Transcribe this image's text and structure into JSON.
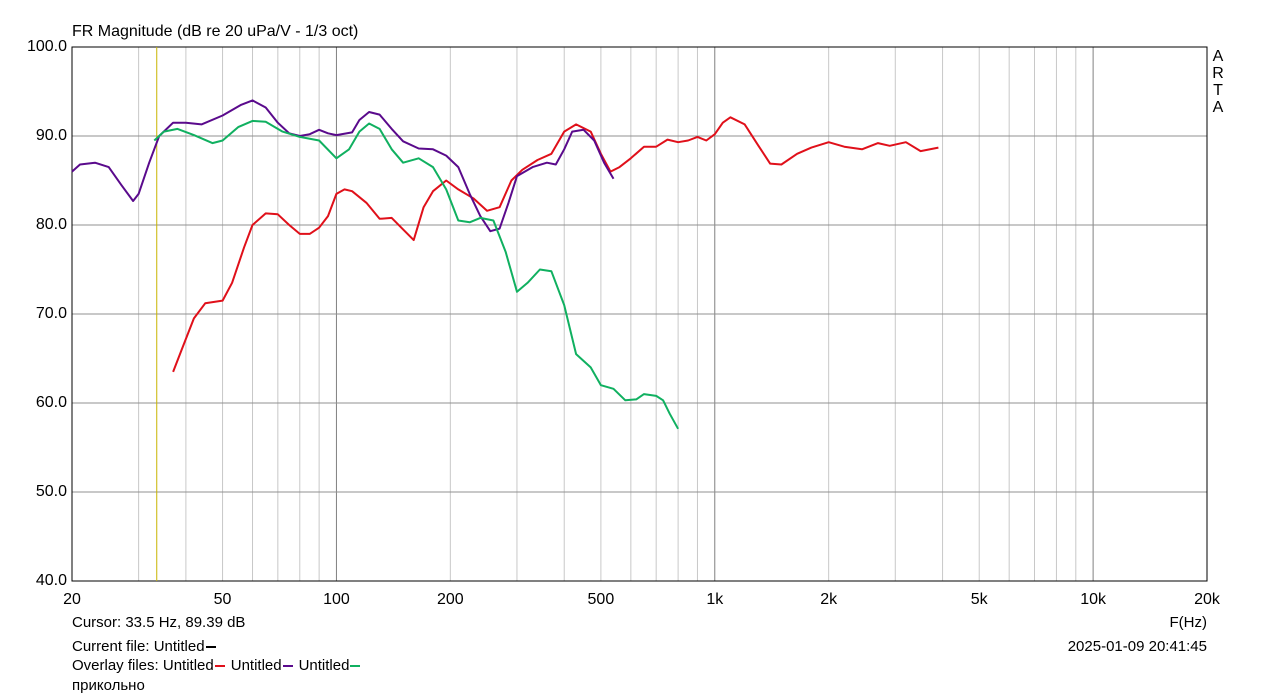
{
  "chart_data": {
    "type": "line",
    "title": "FR Magnitude (dB re 20 uPa/V - 1/3 oct)",
    "x_label": "F(Hz)",
    "side_label": [
      "A",
      "R",
      "T",
      "A"
    ],
    "log_x": true,
    "grid": true,
    "xlim": [
      20,
      20000
    ],
    "ylim": [
      40,
      100
    ],
    "xticks": [
      20,
      50,
      100,
      200,
      500,
      {
        "value": 1000,
        "label": "1k"
      },
      {
        "value": 2000,
        "label": "2k"
      },
      {
        "value": 5000,
        "label": "5k"
      },
      {
        "value": 10000,
        "label": "10k"
      },
      {
        "value": 20000,
        "label": "20k"
      }
    ],
    "xgrid_minor": [
      30,
      40,
      60,
      70,
      80,
      90,
      300,
      400,
      600,
      700,
      800,
      900,
      3000,
      4000,
      6000,
      7000,
      8000,
      9000
    ],
    "yticks": [
      {
        "value": 40,
        "label": "40.0"
      },
      {
        "value": 50,
        "label": "50.0"
      },
      {
        "value": 60,
        "label": "60.0"
      },
      {
        "value": 70,
        "label": "70.0"
      },
      {
        "value": 80,
        "label": "80.0"
      },
      {
        "value": 90,
        "label": "90.0"
      },
      {
        "value": 100,
        "label": "100.0"
      }
    ],
    "cursor": {
      "x": 33.5,
      "label": "Cursor: 33.5 Hz, 89.39 dB",
      "color": "#c8b400"
    },
    "current_file": "Current file: Untitled",
    "current_color": "#000000",
    "overlay_label": "Overlay files:",
    "timestamp": "2025-01-09  20:41:45",
    "note": "прикольно",
    "series": [
      {
        "name": "Untitled",
        "color": "#e0101a",
        "x": [
          37,
          39,
          42,
          45,
          50,
          53,
          57,
          60,
          65,
          70,
          75,
          80,
          85,
          90,
          95,
          100,
          105,
          110,
          120,
          130,
          140,
          150,
          160,
          170,
          180,
          195,
          210,
          230,
          250,
          270,
          290,
          310,
          340,
          370,
          400,
          430,
          470,
          500,
          530,
          560,
          600,
          650,
          700,
          750,
          800,
          850,
          900,
          950,
          1000,
          1050,
          1100,
          1200,
          1300,
          1400,
          1500,
          1650,
          1800,
          2000,
          2200,
          2450,
          2700,
          2900,
          3200,
          3500,
          3900
        ],
        "values": [
          63.5,
          66,
          69.5,
          71.2,
          71.5,
          73.5,
          77.5,
          80,
          81.3,
          81.2,
          80,
          79,
          79,
          79.7,
          81,
          83.5,
          84,
          83.8,
          82.5,
          80.7,
          80.8,
          79.5,
          78.3,
          82,
          83.8,
          85,
          84,
          83,
          81.6,
          82,
          85,
          86.2,
          87.3,
          88,
          90.5,
          91.3,
          90.5,
          88,
          86,
          86.5,
          87.5,
          88.8,
          88.8,
          89.6,
          89.3,
          89.5,
          89.9,
          89.5,
          90.2,
          91.5,
          92.1,
          91.3,
          89,
          86.9,
          86.8,
          88,
          88.7,
          89.3,
          88.8,
          88.5,
          89.2,
          88.9,
          89.3,
          88.3,
          88.7
        ]
      },
      {
        "name": "Untitled",
        "color": "#5a0a8c",
        "x": [
          20,
          21,
          23,
          25,
          27,
          29,
          30,
          32,
          34,
          37,
          40,
          44,
          50,
          56,
          60,
          65,
          70,
          75,
          80,
          85,
          90,
          95,
          100,
          110,
          115,
          122,
          130,
          140,
          150,
          165,
          180,
          195,
          210,
          225,
          240,
          255,
          270,
          285,
          300,
          330,
          360,
          380,
          400,
          420,
          450,
          480,
          510,
          540
        ],
        "values": [
          86,
          86.8,
          87,
          86.5,
          84.5,
          82.7,
          83.5,
          87,
          90,
          91.5,
          91.5,
          91.3,
          92.3,
          93.5,
          94,
          93.2,
          91.5,
          90.3,
          90,
          90.2,
          90.7,
          90.3,
          90.1,
          90.4,
          91.8,
          92.7,
          92.4,
          90.8,
          89.4,
          88.6,
          88.5,
          87.8,
          86.5,
          83.5,
          81,
          79.3,
          79.6,
          82.5,
          85.5,
          86.5,
          87,
          86.8,
          88.5,
          90.5,
          90.7,
          89.5,
          87,
          85.2
        ]
      },
      {
        "name": "Untitled",
        "color": "#10b060",
        "x": [
          33,
          35,
          38,
          42,
          47,
          50,
          55,
          60,
          65,
          72,
          80,
          90,
          100,
          108,
          115,
          122,
          130,
          140,
          150,
          165,
          180,
          195,
          210,
          225,
          240,
          260,
          280,
          300,
          320,
          345,
          370,
          400,
          430,
          470,
          500,
          540,
          580,
          620,
          650,
          700,
          730,
          760,
          800
        ],
        "values": [
          89.5,
          90.5,
          90.8,
          90.1,
          89.2,
          89.5,
          91,
          91.7,
          91.6,
          90.5,
          89.9,
          89.5,
          87.5,
          88.5,
          90.5,
          91.4,
          90.8,
          88.5,
          87,
          87.5,
          86.5,
          84,
          80.5,
          80.3,
          80.8,
          80.5,
          77,
          72.5,
          73.5,
          75,
          74.8,
          71,
          65.5,
          64,
          62,
          61.6,
          60.3,
          60.4,
          61,
          60.8,
          60.3,
          58.8,
          57.1
        ]
      }
    ]
  }
}
